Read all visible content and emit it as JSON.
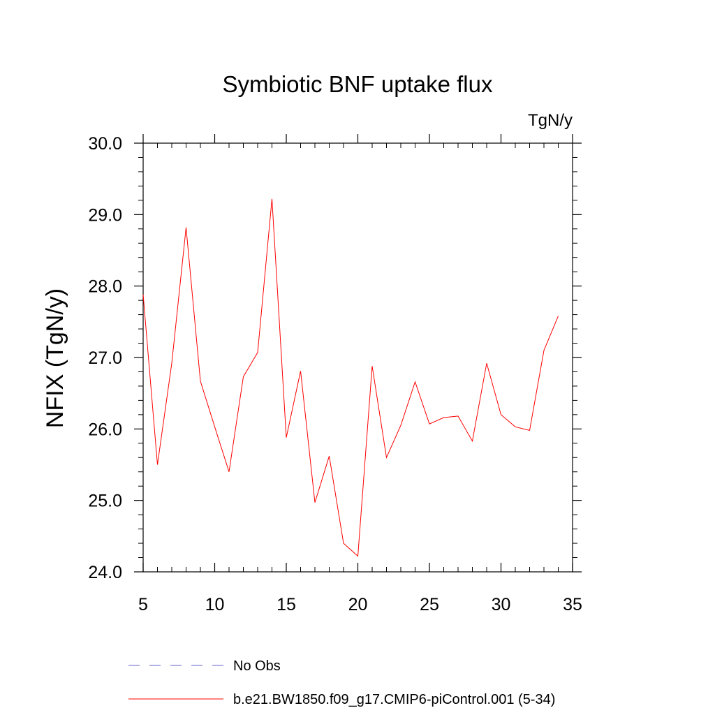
{
  "chart_data": {
    "type": "line",
    "title": "Symbiotic BNF uptake flux",
    "units": "TgN/y",
    "ylabel": "NFIX  (TgN/y)",
    "xlabel": "",
    "xlim": [
      5,
      35
    ],
    "ylim": [
      24.0,
      30.0
    ],
    "x_ticks": [
      5,
      10,
      15,
      20,
      25,
      30,
      35
    ],
    "x_tick_labels": [
      "5",
      "10",
      "15",
      "20",
      "25",
      "30",
      "35"
    ],
    "y_ticks": [
      24.0,
      25.0,
      26.0,
      27.0,
      28.0,
      29.0,
      30.0
    ],
    "y_tick_labels": [
      "24.0",
      "25.0",
      "26.0",
      "27.0",
      "28.0",
      "29.0",
      "30.0"
    ],
    "x_minor_step": 1,
    "y_minor_step": 0.2,
    "grid": false,
    "legend_position": "bottom",
    "series": [
      {
        "name": "No Obs",
        "color": "#6666cc",
        "style": "dashed",
        "x": [],
        "values": []
      },
      {
        "name": "b.e21.BW1850.f09_g17.CMIP6-piControl.001 (5-34)",
        "color": "#ff0000",
        "style": "solid",
        "x": [
          5,
          6,
          7,
          8,
          9,
          10,
          11,
          12,
          13,
          14,
          15,
          16,
          17,
          18,
          19,
          20,
          21,
          22,
          23,
          24,
          25,
          26,
          27,
          28,
          29,
          30,
          31,
          32,
          33,
          34
        ],
        "values": [
          27.88,
          25.5,
          26.92,
          28.82,
          26.67,
          26.03,
          25.4,
          26.73,
          27.07,
          29.22,
          25.88,
          26.81,
          24.97,
          25.62,
          24.4,
          24.22,
          26.88,
          25.6,
          26.05,
          26.66,
          26.07,
          26.16,
          26.18,
          25.83,
          26.92,
          26.2,
          26.03,
          25.98,
          27.1,
          27.58
        ]
      }
    ]
  }
}
